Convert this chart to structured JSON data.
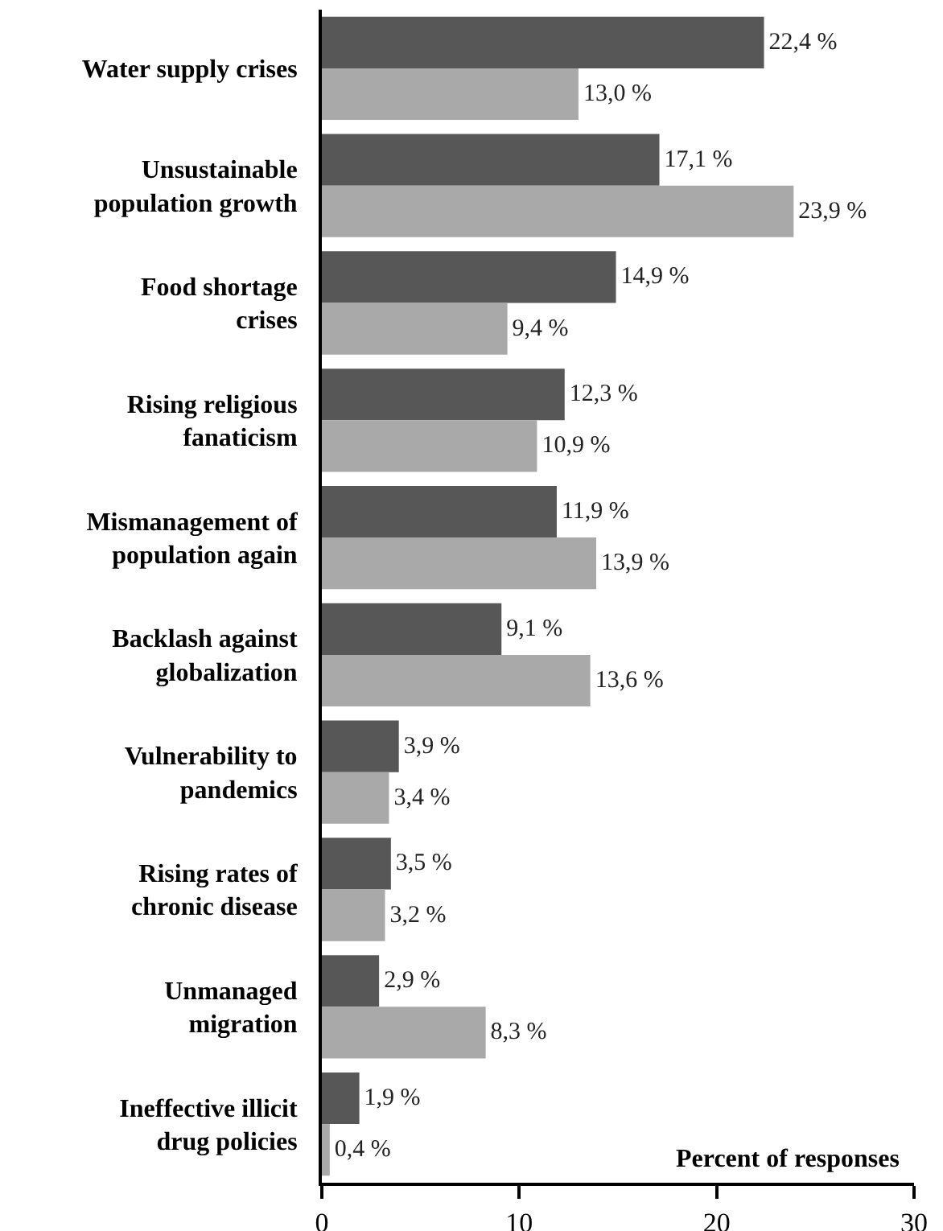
{
  "chart_data": {
    "type": "bar",
    "orientation": "horizontal",
    "xlabel": "Percent of responses",
    "categories": [
      "Water supply crises",
      "Unsustainable\npopulation growth",
      "Food shortage\ncrises",
      "Rising religious\nfanaticism",
      "Mismanagement of\npopulation again",
      "Backlash against\nglobalization",
      "Vulnerability to\npandemics",
      "Rising rates of\nchronic disease",
      "Unmanaged\nmigration",
      "Ineffective illicit\ndrug policies"
    ],
    "series": [
      {
        "color": "#575757",
        "values": [
          22.4,
          17.1,
          14.9,
          12.3,
          11.9,
          9.1,
          3.9,
          3.5,
          2.9,
          1.9
        ],
        "value_labels": [
          "22,4 %",
          "17,1 %",
          "14,9 %",
          "12,3 %",
          "11,9 %",
          "9,1 %",
          "3,9 %",
          "3,5 %",
          "2,9 %",
          "1,9 %"
        ]
      },
      {
        "color": "#a9a9a9",
        "values": [
          13.0,
          23.9,
          9.4,
          10.9,
          13.9,
          13.6,
          3.4,
          3.2,
          8.3,
          0.4
        ],
        "value_labels": [
          "13,0 %",
          "23,9 %",
          "9,4 %",
          "10,9 %",
          "13,9 %",
          "13,6 %",
          "3,4 %",
          "3,2 %",
          "8,3 %",
          "0,4 %"
        ]
      }
    ],
    "xlim": [
      0,
      30
    ],
    "xticks": [
      0,
      10,
      20,
      30
    ],
    "grid": false
  }
}
